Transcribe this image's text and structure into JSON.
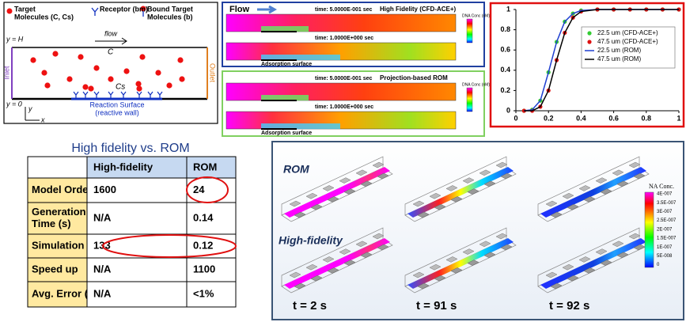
{
  "schematic": {
    "legend": [
      {
        "lines": [
          "Target",
          "Molecules (C, Cs)"
        ]
      },
      {
        "lines": [
          "Receptor (bm)"
        ]
      },
      {
        "lines": [
          "Bound Target",
          "Molecules (b)"
        ]
      }
    ],
    "top_label": "y = H",
    "bottom_label": "y = 0",
    "flow": "flow",
    "bulk": "C",
    "surface_conc": "Cs",
    "inlet": "Inlet",
    "outlet": "Outlet",
    "surface": [
      "Reaction Surface",
      "(reactive wall)"
    ],
    "axis_y": "y",
    "axis_x": "x"
  },
  "cfd": {
    "flow": "Flow",
    "colorbar": "DNA Conc (nM)",
    "surface": "Adsorption surface",
    "panels": [
      {
        "title": "High Fidelity (CFD-ACE+)",
        "times": [
          "time: 5.0000E-001 sec",
          "time: 1.0000E+000 sec"
        ]
      },
      {
        "title": "Projection-based ROM",
        "times": [
          "time: 5.0000E-001 sec",
          "time: 1.0000E+000 sec"
        ]
      }
    ]
  },
  "chart_data": {
    "type": "line",
    "x": [
      0.05,
      0.1,
      0.15,
      0.2,
      0.25,
      0.3,
      0.35,
      0.4,
      0.5,
      0.6,
      0.7,
      0.8,
      0.9,
      1.0
    ],
    "series": [
      {
        "name": "22.5 um (CFD-ACE+)",
        "color": "#33cc33",
        "style": "markers",
        "values": [
          0,
          0.01,
          0.1,
          0.38,
          0.68,
          0.88,
          0.96,
          0.99,
          1,
          1,
          1,
          1,
          1,
          1
        ]
      },
      {
        "name": "47.5 um (CFD-ACE+)",
        "color": "#dd1111",
        "style": "markers",
        "values": [
          0,
          0,
          0.04,
          0.2,
          0.5,
          0.77,
          0.92,
          0.98,
          1,
          1,
          1,
          1,
          1,
          1
        ]
      },
      {
        "name": "22.5 um (ROM)",
        "color": "#1f3fd0",
        "style": "line",
        "values": [
          0,
          0.01,
          0.1,
          0.38,
          0.68,
          0.88,
          0.96,
          0.99,
          1,
          1,
          1,
          1,
          1,
          1
        ]
      },
      {
        "name": "47.5 um (ROM)",
        "color": "#000000",
        "style": "line",
        "values": [
          0,
          0,
          0.04,
          0.2,
          0.5,
          0.77,
          0.92,
          0.98,
          1,
          1,
          1,
          1,
          1,
          1
        ]
      }
    ],
    "xlim": [
      0,
      1
    ],
    "ylim": [
      0,
      1
    ],
    "xticks": [
      0,
      0.2,
      0.4,
      0.6,
      0.8,
      1
    ],
    "yticks": [
      0,
      0.2,
      0.4,
      0.6,
      0.8,
      1
    ],
    "legend": "right"
  },
  "table": {
    "title": "High fidelity vs. ROM",
    "columns": [
      "High-fidelity",
      "ROM"
    ],
    "rows": [
      {
        "label": [
          "Model Orders"
        ],
        "cells": [
          "1600",
          "24"
        ]
      },
      {
        "label": [
          "Generation",
          "Time (s)"
        ],
        "cells": [
          "N/A",
          "0.14"
        ]
      },
      {
        "label": [
          "Simulation (s)"
        ],
        "cells": [
          "133",
          "0.12"
        ]
      },
      {
        "label": [
          "Speed up"
        ],
        "cells": [
          "N/A",
          "1100"
        ]
      },
      {
        "label": [
          "Avg. Error (%)"
        ],
        "cells": [
          "N/A",
          "<1%"
        ]
      }
    ]
  },
  "simulation": {
    "rows": [
      "ROM",
      "High-fidelity"
    ],
    "times": [
      "t = 2 s",
      "t = 91 s",
      "t = 92 s"
    ],
    "colorbar": {
      "title": "NA Conc.",
      "labels": [
        "4E-007",
        "3.5E-007",
        "3E-007",
        "2.5E-007",
        "2E-007",
        "1.5E-007",
        "1E-007",
        "5E-008",
        "0"
      ]
    }
  }
}
